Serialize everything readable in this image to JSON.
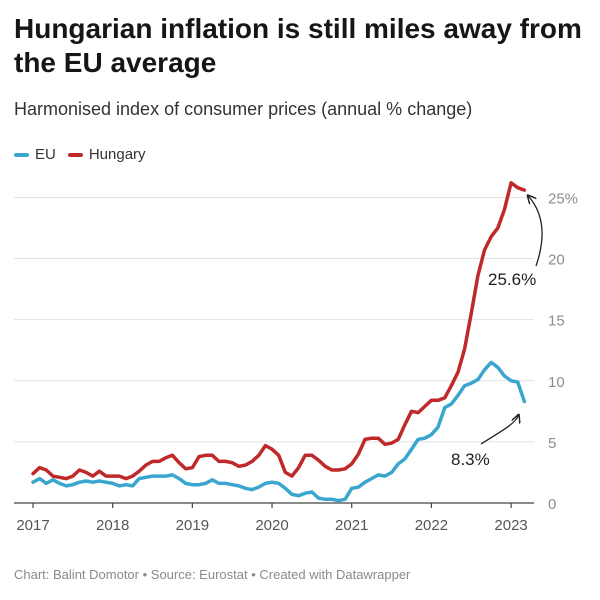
{
  "chart_data": {
    "type": "line",
    "title": "Hungarian inflation is still miles away from the EU average",
    "subtitle": "Harmonised index of consumer prices (annual % change)",
    "xlabel": "",
    "ylabel": "",
    "x_ticks": [
      "2017",
      "2018",
      "2019",
      "2020",
      "2021",
      "2022",
      "2023"
    ],
    "y_ticks": [
      "0",
      "5",
      "10",
      "15",
      "20",
      "25%"
    ],
    "y_tick_values": [
      0,
      5,
      10,
      15,
      20,
      25
    ],
    "ylim": [
      0,
      27
    ],
    "xlim": [
      2017.0,
      2023.25
    ],
    "x_start": 2017.0,
    "x_step_months": 1,
    "series": [
      {
        "name": "EU",
        "color": "#3aa6d0",
        "values": [
          1.7,
          2.0,
          1.6,
          1.9,
          1.6,
          1.4,
          1.5,
          1.7,
          1.8,
          1.7,
          1.8,
          1.7,
          1.6,
          1.4,
          1.5,
          1.4,
          2.0,
          2.1,
          2.2,
          2.2,
          2.2,
          2.3,
          2.0,
          1.6,
          1.5,
          1.5,
          1.6,
          1.9,
          1.6,
          1.6,
          1.5,
          1.4,
          1.2,
          1.1,
          1.3,
          1.6,
          1.7,
          1.6,
          1.2,
          0.7,
          0.6,
          0.8,
          0.9,
          0.4,
          0.3,
          0.3,
          0.2,
          0.3,
          1.2,
          1.3,
          1.7,
          2.0,
          2.3,
          2.2,
          2.5,
          3.2,
          3.6,
          4.4,
          5.2,
          5.3,
          5.6,
          6.2,
          7.8,
          8.1,
          8.8,
          9.6,
          9.8,
          10.1,
          10.9,
          11.5,
          11.1,
          10.4,
          10.0,
          9.9,
          8.3
        ]
      },
      {
        "name": "Hungary",
        "color": "#c0292a",
        "values": [
          2.4,
          2.9,
          2.7,
          2.2,
          2.1,
          2.0,
          2.2,
          2.7,
          2.5,
          2.2,
          2.6,
          2.2,
          2.2,
          2.2,
          2.0,
          2.2,
          2.6,
          3.1,
          3.4,
          3.4,
          3.7,
          3.9,
          3.3,
          2.8,
          2.9,
          3.8,
          3.9,
          3.9,
          3.4,
          3.4,
          3.3,
          3.0,
          3.1,
          3.4,
          3.9,
          4.7,
          4.4,
          3.9,
          2.5,
          2.2,
          2.9,
          3.9,
          3.9,
          3.5,
          3.0,
          2.7,
          2.7,
          2.8,
          3.2,
          4.0,
          5.2,
          5.3,
          5.3,
          4.8,
          4.9,
          5.2,
          6.4,
          7.5,
          7.4,
          7.9,
          8.4,
          8.4,
          8.6,
          9.6,
          10.7,
          12.6,
          15.5,
          18.6,
          20.7,
          21.8,
          22.5,
          24.0,
          26.2,
          25.8,
          25.6
        ]
      }
    ],
    "annotations": [
      {
        "text": "25.6%",
        "series": "Hungary",
        "value": 25.6
      },
      {
        "text": "8.3%",
        "series": "EU",
        "value": 8.3
      }
    ],
    "legend": [
      "EU",
      "Hungary"
    ],
    "legend_position": "top-left",
    "grid": true
  },
  "footer": "Chart: Balint Domotor • Source: Eurostat • Created with Datawrapper"
}
